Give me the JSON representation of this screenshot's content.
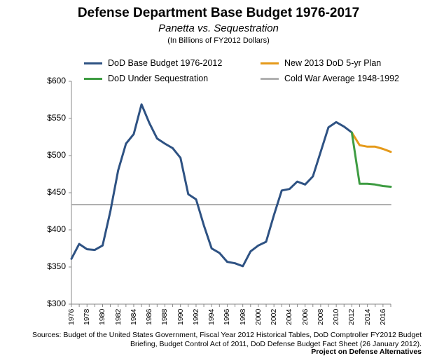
{
  "title": "Defense Department Base Budget 1976-2017",
  "subtitle": "Panetta vs. Sequestration",
  "units": "(In Billions of FY2012 Dollars)",
  "sources": "Sources: Budget of the United States Government, Fiscal Year 2012 Historical Tables, DoD Comptroller FY2012 Budget Briefing, Budget Control Act of 2011, DoD Defense Budget Fact Sheet (26 January 2012).",
  "credit": "Project on Defense Alternatives",
  "chart_data": {
    "type": "line",
    "title": "Defense Department Base Budget 1976-2017",
    "subtitle": "Panetta vs. Sequestration",
    "ylabel": "",
    "xlabel": "",
    "ylim": [
      300,
      600
    ],
    "xlim": [
      1976,
      2017
    ],
    "yticks": [
      "$300",
      "$350",
      "$400",
      "$450",
      "$500",
      "$550",
      "$600"
    ],
    "xticks": [
      "1976",
      "1978",
      "1980",
      "1982",
      "1984",
      "1986",
      "1988",
      "1990",
      "1992",
      "1994",
      "1996",
      "1998",
      "2000",
      "2002",
      "2004",
      "2006",
      "2008",
      "2010",
      "2012",
      "2014",
      "2016"
    ],
    "legend_position": "top",
    "series": [
      {
        "name": "DoD Base Budget 1976-2012",
        "color": "#2e5283",
        "x": [
          1976,
          1977,
          1978,
          1979,
          1980,
          1981,
          1982,
          1983,
          1984,
          1985,
          1986,
          1987,
          1988,
          1989,
          1990,
          1991,
          1992,
          1993,
          1994,
          1995,
          1996,
          1997,
          1998,
          1999,
          2000,
          2001,
          2002,
          2003,
          2004,
          2005,
          2006,
          2007,
          2008,
          2009,
          2010,
          2011,
          2012
        ],
        "values": [
          361,
          381,
          374,
          373,
          379,
          425,
          480,
          516,
          529,
          569,
          544,
          523,
          516,
          510,
          497,
          448,
          441,
          406,
          375,
          369,
          357,
          355,
          351,
          371,
          379,
          384,
          420,
          453,
          455,
          465,
          461,
          472,
          505,
          538,
          545,
          539,
          531
        ]
      },
      {
        "name": "New 2013 DoD 5-yr Plan",
        "color": "#e59a1a",
        "x": [
          2012,
          2013,
          2014,
          2015,
          2016,
          2017
        ],
        "values": [
          531,
          514,
          512,
          512,
          509,
          505
        ]
      },
      {
        "name": "DoD Under Sequestration",
        "color": "#3e9c42",
        "x": [
          2012,
          2013,
          2014,
          2015,
          2016,
          2017
        ],
        "values": [
          531,
          462,
          462,
          461,
          459,
          458
        ]
      },
      {
        "name": "Cold War Average 1948-1992",
        "color": "#b0b0b0",
        "x": [
          1976,
          2017
        ],
        "values": [
          434,
          434
        ]
      }
    ]
  }
}
